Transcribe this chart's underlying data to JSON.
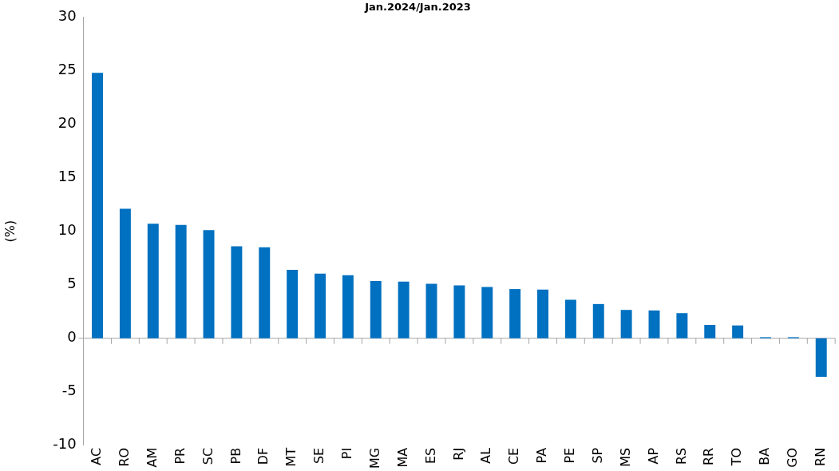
{
  "chart_data": {
    "type": "bar",
    "title": "Jan.2024/Jan.2023",
    "ylabel": "(%)",
    "categories": [
      "AC",
      "RO",
      "AM",
      "PR",
      "SC",
      "PB",
      "DF",
      "MT",
      "SE",
      "PI",
      "MG",
      "MA",
      "ES",
      "RJ",
      "AL",
      "CE",
      "PA",
      "PE",
      "SP",
      "MS",
      "AP",
      "RS",
      "RR",
      "TO",
      "BA",
      "GO",
      "RN"
    ],
    "values": [
      24.8,
      12.1,
      10.7,
      10.6,
      10.1,
      8.6,
      8.5,
      6.4,
      6.05,
      5.9,
      5.35,
      5.3,
      5.1,
      4.95,
      4.8,
      4.6,
      4.55,
      3.6,
      3.2,
      2.65,
      2.6,
      2.35,
      1.25,
      1.2,
      0.1,
      0.1,
      -3.6
    ],
    "color": "#0070c0",
    "ylim": [
      -10,
      30
    ],
    "yticks": [
      -10,
      -5,
      0,
      5,
      10,
      15,
      20,
      25,
      30
    ],
    "legend": false
  }
}
